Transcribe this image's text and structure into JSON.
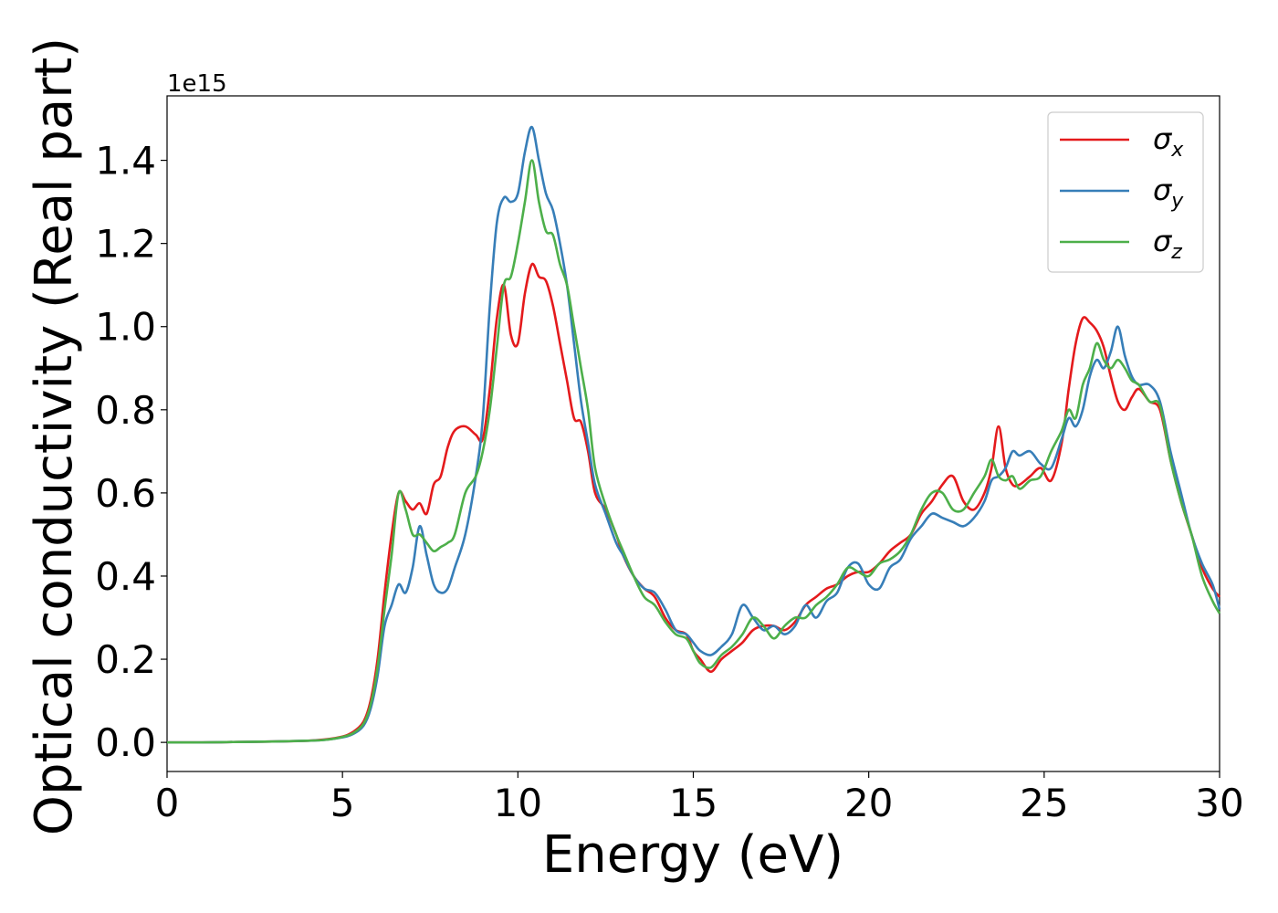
{
  "chart_data": {
    "type": "line",
    "title": "",
    "xlabel": "Energy (eV)",
    "ylabel": "Optical conductivity (Real part)",
    "y_offset_label": "1e15",
    "xlim": [
      0,
      30
    ],
    "ylim": [
      -0.07,
      1.555
    ],
    "x_ticks": [
      0,
      5,
      10,
      15,
      20,
      25,
      30
    ],
    "x_tick_labels": [
      "0",
      "5",
      "10",
      "15",
      "20",
      "25",
      "30"
    ],
    "y_ticks": [
      0.0,
      0.2,
      0.4,
      0.6,
      0.8,
      1.0,
      1.2,
      1.4
    ],
    "y_tick_labels": [
      "0.0",
      "0.2",
      "0.4",
      "0.6",
      "0.8",
      "1.0",
      "1.2",
      "1.4"
    ],
    "grid": false,
    "legend_position": "top-right",
    "series": [
      {
        "name": "σx",
        "legend_symbol": "σ",
        "legend_subscript": "x",
        "color": "#e41a1c",
        "x": [
          0,
          1,
          2,
          3,
          4,
          4.5,
          5,
          5.3,
          5.6,
          5.8,
          6.0,
          6.2,
          6.4,
          6.6,
          6.8,
          7.0,
          7.2,
          7.4,
          7.6,
          7.8,
          8.0,
          8.2,
          8.5,
          8.8,
          9.0,
          9.2,
          9.4,
          9.6,
          9.8,
          10.0,
          10.2,
          10.4,
          10.6,
          10.8,
          11.0,
          11.2,
          11.4,
          11.6,
          11.8,
          12.0,
          12.2,
          12.5,
          12.8,
          13.0,
          13.3,
          13.6,
          13.9,
          14.2,
          14.5,
          14.8,
          15.0,
          15.2,
          15.5,
          15.8,
          16.1,
          16.4,
          16.7,
          17.0,
          17.3,
          17.6,
          17.9,
          18.2,
          18.5,
          18.8,
          19.1,
          19.4,
          19.7,
          20.0,
          20.3,
          20.6,
          20.9,
          21.2,
          21.5,
          21.8,
          22.1,
          22.4,
          22.7,
          23.0,
          23.3,
          23.5,
          23.7,
          23.9,
          24.1,
          24.3,
          24.6,
          24.9,
          25.2,
          25.5,
          25.7,
          25.9,
          26.1,
          26.3,
          26.5,
          26.7,
          26.9,
          27.1,
          27.3,
          27.5,
          27.7,
          28.0,
          28.3,
          28.6,
          28.9,
          29.2,
          29.5,
          29.8,
          30.0
        ],
        "y": [
          0,
          0,
          0.001,
          0.002,
          0.004,
          0.007,
          0.014,
          0.025,
          0.05,
          0.1,
          0.2,
          0.36,
          0.5,
          0.6,
          0.58,
          0.56,
          0.575,
          0.55,
          0.62,
          0.64,
          0.71,
          0.75,
          0.76,
          0.74,
          0.73,
          0.85,
          1.02,
          1.1,
          0.98,
          0.96,
          1.08,
          1.15,
          1.12,
          1.11,
          1.05,
          0.96,
          0.87,
          0.78,
          0.77,
          0.7,
          0.6,
          0.56,
          0.5,
          0.45,
          0.4,
          0.37,
          0.35,
          0.3,
          0.27,
          0.26,
          0.22,
          0.2,
          0.17,
          0.2,
          0.22,
          0.24,
          0.27,
          0.28,
          0.28,
          0.27,
          0.29,
          0.33,
          0.35,
          0.37,
          0.38,
          0.4,
          0.41,
          0.41,
          0.43,
          0.46,
          0.48,
          0.5,
          0.55,
          0.58,
          0.62,
          0.64,
          0.58,
          0.56,
          0.6,
          0.66,
          0.76,
          0.66,
          0.62,
          0.62,
          0.64,
          0.66,
          0.63,
          0.72,
          0.85,
          0.96,
          1.02,
          1.01,
          0.99,
          0.95,
          0.88,
          0.82,
          0.8,
          0.83,
          0.85,
          0.82,
          0.8,
          0.68,
          0.58,
          0.5,
          0.42,
          0.37,
          0.35
        ]
      },
      {
        "name": "σy",
        "legend_symbol": "σ",
        "legend_subscript": "y",
        "color": "#377eb8",
        "x": [
          0,
          1,
          2,
          3,
          4,
          4.5,
          5,
          5.3,
          5.6,
          5.8,
          6.0,
          6.2,
          6.4,
          6.6,
          6.8,
          7.0,
          7.2,
          7.4,
          7.6,
          7.8,
          8.0,
          8.2,
          8.5,
          8.8,
          9.0,
          9.2,
          9.4,
          9.6,
          9.8,
          10.0,
          10.2,
          10.4,
          10.6,
          10.8,
          11.0,
          11.2,
          11.4,
          11.6,
          11.8,
          12.0,
          12.2,
          12.5,
          12.8,
          13.0,
          13.3,
          13.6,
          13.9,
          14.2,
          14.5,
          14.8,
          15.0,
          15.2,
          15.5,
          15.8,
          16.1,
          16.4,
          16.7,
          17.0,
          17.3,
          17.6,
          17.9,
          18.2,
          18.5,
          18.8,
          19.1,
          19.4,
          19.7,
          20.0,
          20.3,
          20.6,
          20.9,
          21.2,
          21.5,
          21.8,
          22.1,
          22.4,
          22.7,
          23.0,
          23.3,
          23.5,
          23.7,
          23.9,
          24.1,
          24.3,
          24.6,
          24.9,
          25.2,
          25.5,
          25.7,
          25.9,
          26.1,
          26.3,
          26.5,
          26.7,
          26.9,
          27.1,
          27.3,
          27.5,
          27.7,
          28.0,
          28.3,
          28.6,
          28.9,
          29.2,
          29.5,
          29.8,
          30.0
        ],
        "y": [
          0,
          0,
          0.001,
          0.002,
          0.004,
          0.006,
          0.012,
          0.02,
          0.04,
          0.08,
          0.16,
          0.28,
          0.33,
          0.38,
          0.36,
          0.42,
          0.52,
          0.45,
          0.38,
          0.36,
          0.37,
          0.42,
          0.5,
          0.64,
          0.78,
          1.05,
          1.25,
          1.31,
          1.3,
          1.32,
          1.42,
          1.48,
          1.4,
          1.32,
          1.28,
          1.2,
          1.1,
          0.96,
          0.82,
          0.72,
          0.62,
          0.55,
          0.48,
          0.45,
          0.4,
          0.37,
          0.36,
          0.32,
          0.27,
          0.26,
          0.24,
          0.22,
          0.21,
          0.23,
          0.26,
          0.33,
          0.3,
          0.27,
          0.28,
          0.26,
          0.28,
          0.33,
          0.3,
          0.34,
          0.36,
          0.42,
          0.43,
          0.38,
          0.37,
          0.42,
          0.44,
          0.49,
          0.52,
          0.55,
          0.54,
          0.53,
          0.52,
          0.54,
          0.58,
          0.63,
          0.64,
          0.66,
          0.7,
          0.69,
          0.7,
          0.67,
          0.66,
          0.73,
          0.78,
          0.76,
          0.8,
          0.88,
          0.92,
          0.9,
          0.94,
          1.0,
          0.93,
          0.88,
          0.86,
          0.86,
          0.82,
          0.7,
          0.6,
          0.5,
          0.43,
          0.38,
          0.32
        ]
      },
      {
        "name": "σz",
        "legend_symbol": "σ",
        "legend_subscript": "z",
        "color": "#4daf4a",
        "x": [
          0,
          1,
          2,
          3,
          4,
          4.5,
          5,
          5.3,
          5.6,
          5.8,
          6.0,
          6.2,
          6.4,
          6.6,
          6.8,
          7.0,
          7.2,
          7.4,
          7.6,
          7.8,
          8.0,
          8.2,
          8.5,
          8.8,
          9.0,
          9.2,
          9.4,
          9.6,
          9.8,
          10.0,
          10.2,
          10.4,
          10.6,
          10.8,
          11.0,
          11.2,
          11.4,
          11.6,
          11.8,
          12.0,
          12.2,
          12.5,
          12.8,
          13.0,
          13.3,
          13.6,
          13.9,
          14.2,
          14.5,
          14.8,
          15.0,
          15.2,
          15.5,
          15.8,
          16.1,
          16.4,
          16.7,
          17.0,
          17.3,
          17.6,
          17.9,
          18.2,
          18.5,
          18.8,
          19.1,
          19.4,
          19.7,
          20.0,
          20.3,
          20.6,
          20.9,
          21.2,
          21.5,
          21.8,
          22.1,
          22.4,
          22.7,
          23.0,
          23.3,
          23.5,
          23.7,
          23.9,
          24.1,
          24.3,
          24.6,
          24.9,
          25.2,
          25.5,
          25.7,
          25.9,
          26.1,
          26.3,
          26.5,
          26.7,
          26.9,
          27.1,
          27.3,
          27.5,
          27.7,
          28.0,
          28.3,
          28.6,
          28.9,
          29.2,
          29.5,
          29.8,
          30.0
        ],
        "y": [
          0,
          0,
          0.001,
          0.002,
          0.004,
          0.006,
          0.013,
          0.022,
          0.045,
          0.09,
          0.18,
          0.32,
          0.45,
          0.6,
          0.56,
          0.5,
          0.5,
          0.48,
          0.46,
          0.47,
          0.48,
          0.5,
          0.6,
          0.64,
          0.7,
          0.8,
          0.95,
          1.1,
          1.12,
          1.2,
          1.3,
          1.4,
          1.3,
          1.23,
          1.22,
          1.15,
          1.1,
          1.0,
          0.9,
          0.8,
          0.66,
          0.57,
          0.5,
          0.46,
          0.4,
          0.35,
          0.33,
          0.29,
          0.26,
          0.25,
          0.22,
          0.19,
          0.18,
          0.21,
          0.23,
          0.26,
          0.3,
          0.28,
          0.25,
          0.28,
          0.3,
          0.3,
          0.33,
          0.35,
          0.38,
          0.42,
          0.41,
          0.4,
          0.43,
          0.44,
          0.46,
          0.5,
          0.56,
          0.6,
          0.6,
          0.56,
          0.56,
          0.6,
          0.64,
          0.68,
          0.64,
          0.63,
          0.64,
          0.61,
          0.63,
          0.64,
          0.7,
          0.75,
          0.8,
          0.78,
          0.86,
          0.9,
          0.96,
          0.92,
          0.9,
          0.92,
          0.9,
          0.87,
          0.86,
          0.82,
          0.81,
          0.68,
          0.58,
          0.5,
          0.4,
          0.34,
          0.31
        ]
      }
    ]
  }
}
